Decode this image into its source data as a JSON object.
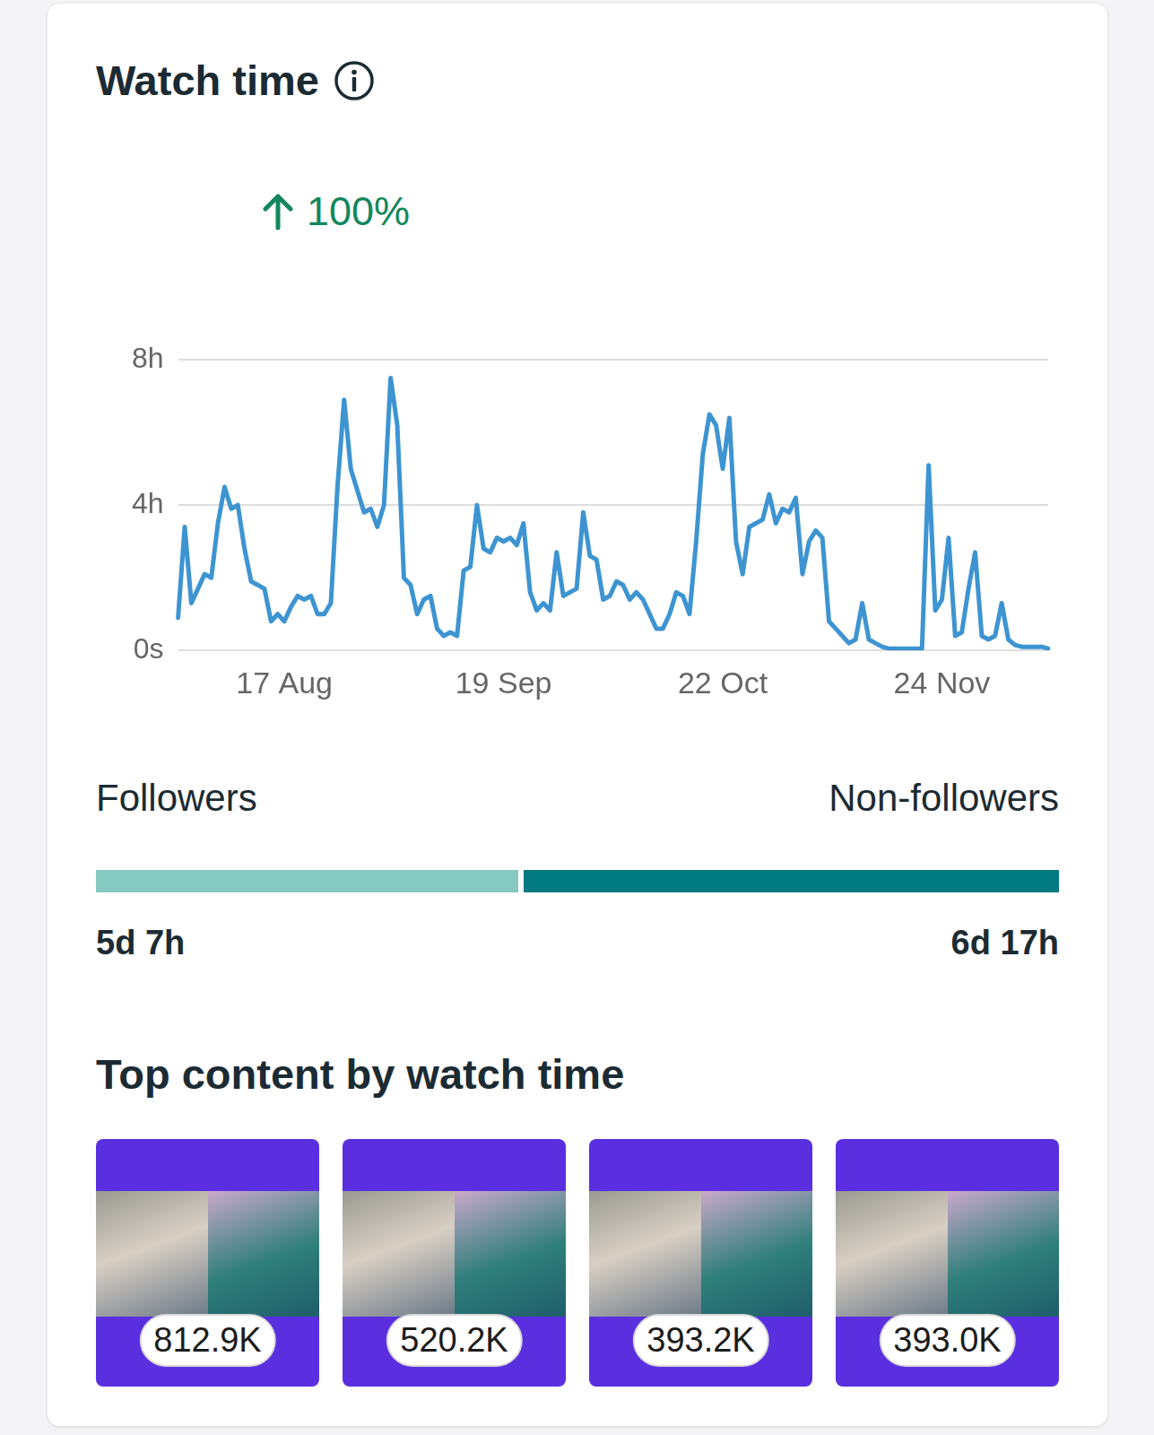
{
  "chart_data": {
    "type": "line",
    "title": "Watch time",
    "subtitle": "100%",
    "categories": [
      null,
      null,
      null,
      null,
      null,
      null,
      null,
      null,
      null,
      null,
      null,
      null,
      null,
      null,
      null,
      null,
      "17 Aug",
      null,
      null,
      null,
      null,
      null,
      null,
      null,
      null,
      null,
      null,
      null,
      null,
      null,
      null,
      null,
      null,
      null,
      null,
      null,
      null,
      null,
      null,
      null,
      null,
      null,
      null,
      null,
      null,
      null,
      null,
      null,
      null,
      "19 Sep",
      null,
      null,
      null,
      null,
      null,
      null,
      null,
      null,
      null,
      null,
      null,
      null,
      null,
      null,
      null,
      null,
      null,
      null,
      null,
      null,
      null,
      null,
      null,
      null,
      null,
      null,
      null,
      null,
      null,
      null,
      null,
      null,
      "22 Oct",
      null,
      null,
      null,
      null,
      null,
      null,
      null,
      null,
      null,
      null,
      null,
      null,
      null,
      null,
      null,
      null,
      null,
      null,
      null,
      null,
      null,
      null,
      null,
      null,
      null,
      null,
      null,
      null,
      null,
      null,
      null,
      null,
      "24 Nov",
      null,
      null,
      null,
      null,
      null,
      null,
      null,
      null,
      null,
      null,
      null,
      null,
      null,
      null,
      null,
      null
    ],
    "values": [
      0.9,
      3.4,
      1.3,
      1.7,
      2.1,
      2.0,
      3.5,
      4.5,
      3.9,
      4.0,
      2.8,
      1.9,
      1.8,
      1.7,
      0.8,
      1.0,
      0.8,
      1.2,
      1.5,
      1.4,
      1.5,
      1.0,
      1.0,
      1.3,
      4.5,
      6.9,
      5.0,
      4.4,
      3.8,
      3.9,
      3.4,
      4.0,
      7.5,
      6.2,
      2.0,
      1.8,
      1.0,
      1.4,
      1.5,
      0.6,
      0.4,
      0.5,
      0.4,
      2.2,
      2.3,
      4.0,
      2.8,
      2.7,
      3.1,
      3.0,
      3.1,
      2.9,
      3.5,
      1.6,
      1.1,
      1.3,
      1.1,
      2.7,
      1.5,
      1.6,
      1.7,
      3.8,
      2.6,
      2.5,
      1.4,
      1.5,
      1.9,
      1.8,
      1.4,
      1.6,
      1.4,
      1.0,
      0.6,
      0.6,
      1.0,
      1.6,
      1.5,
      1.0,
      3.0,
      5.4,
      6.5,
      6.2,
      5.0,
      6.4,
      3.0,
      2.1,
      3.4,
      3.5,
      3.6,
      4.3,
      3.5,
      3.9,
      3.8,
      4.2,
      2.1,
      3.0,
      3.3,
      3.1,
      0.8,
      0.6,
      0.4,
      0.2,
      0.3,
      1.3,
      0.3,
      0.2,
      0.1,
      0.05,
      0.05,
      0.05,
      0.05,
      0.05,
      0.05,
      5.1,
      1.1,
      1.4,
      3.1,
      0.4,
      0.5,
      1.7,
      2.7,
      0.4,
      0.3,
      0.4,
      1.3,
      0.3,
      0.15,
      0.1,
      0.1,
      0.1,
      0.1,
      0.05
    ],
    "color": "#3d94d1",
    "ylim": [
      0,
      8
    ],
    "yticks": [
      {
        "value": 0,
        "label": "0s"
      },
      {
        "value": 4,
        "label": "4h"
      },
      {
        "value": 8,
        "label": "8h"
      }
    ],
    "grid": true
  },
  "audience": {
    "segments": [
      {
        "name": "Followers",
        "hours": 127,
        "label": "5d 7h",
        "color": "#86c9c1"
      },
      {
        "name": "Non-followers",
        "hours": 161,
        "label": "6d 17h",
        "color": "#007a80"
      }
    ]
  },
  "top_content": {
    "title": "Top content by watch time",
    "items": [
      "812.9K",
      "520.2K",
      "393.2K",
      "393.0K"
    ]
  }
}
